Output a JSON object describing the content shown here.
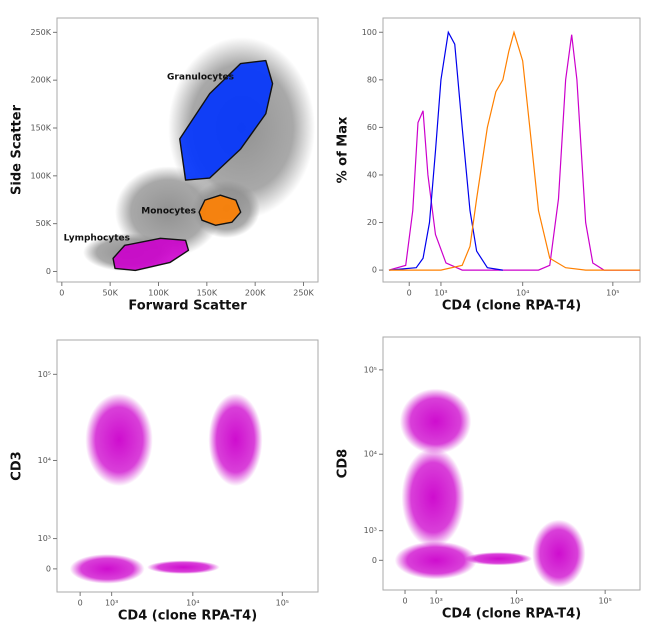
{
  "chart_data": [
    {
      "type": "scatter",
      "xlabel": "Forward Scatter",
      "ylabel": "Side Scatter",
      "xlim": [
        -5000,
        265000
      ],
      "ylim": [
        -11000,
        265000
      ],
      "xticks": [
        0,
        {
          "value": 50000,
          "label": "50K"
        },
        {
          "value": 100000,
          "label": "100K"
        },
        {
          "value": 150000,
          "label": "150K"
        },
        {
          "value": 200000,
          "label": "200K"
        },
        {
          "value": 250000,
          "label": "250K"
        }
      ],
      "yticks": [
        0,
        {
          "value": 50000,
          "label": "50K"
        },
        {
          "value": 100000,
          "label": "100K"
        },
        {
          "value": 150000,
          "label": "150K"
        },
        {
          "value": 200000,
          "label": "200K"
        },
        {
          "value": 250000,
          "label": "250K"
        }
      ],
      "color": "#8c8c8c",
      "populations": [
        {
          "x": [
            22000,
            115000
          ],
          "y": [
            0,
            40000
          ]
        },
        {
          "x": [
            55000,
            165000
          ],
          "y": [
            15000,
            110000
          ]
        },
        {
          "x": [
            110000,
            262000
          ],
          "y": [
            55000,
            245000
          ]
        },
        {
          "x": [
            135000,
            205000
          ],
          "y": [
            35000,
            95000
          ]
        }
      ],
      "gates": [
        {
          "name": "Granulocytes",
          "color": "#0033ff",
          "x": [
            122000,
            153000,
            185000,
            211000,
            218000,
            211000,
            185000,
            153000,
            128000
          ],
          "y": [
            138600,
            185900,
            217400,
            220500,
            196400,
            164900,
            128100,
            97700,
            95600
          ]
        },
        {
          "name": "Monocytes",
          "color": "#ff8000",
          "x": [
            142000,
            148000,
            164000,
            180000,
            185000,
            176000,
            159000,
            145000
          ],
          "y": [
            62000,
            74600,
            79800,
            74600,
            62000,
            51500,
            48300,
            53600
          ]
        },
        {
          "name": "Lymphocytes",
          "color": "#cc00cc",
          "x": [
            53000,
            65000,
            102000,
            128000,
            131000,
            112000,
            76000,
            55000
          ],
          "y": [
            13700,
            27300,
            34700,
            32600,
            22100,
            9500,
            1100,
            3200
          ]
        }
      ]
    },
    {
      "type": "line",
      "xlabel": "CD4 (clone RPA-T4)",
      "ylabel": "% of Max",
      "xscale": "biexponential",
      "xlim": [
        -800,
        200000
      ],
      "ylim": [
        -5,
        106
      ],
      "xticks": [
        0,
        {
          "value": 1000,
          "label": "10³"
        },
        {
          "value": 10000,
          "label": "10⁴"
        },
        {
          "value": 100000,
          "label": "10⁵"
        }
      ],
      "yticks": [
        0,
        20,
        40,
        60,
        80,
        100
      ],
      "series": [
        {
          "color": "#cc00cc",
          "x": [
            -600,
            -100,
            100,
            250,
            400,
            550,
            800,
            1200,
            2000,
            5000,
            10000,
            15000,
            20000,
            25000,
            30000,
            35000,
            40000,
            50000,
            60000,
            80000,
            200000
          ],
          "values": [
            0,
            2,
            25,
            62,
            67,
            40,
            15,
            3,
            0,
            0,
            0,
            0,
            2,
            30,
            80,
            99,
            80,
            20,
            3,
            0,
            0
          ]
        },
        {
          "color": "#0000ee",
          "x": [
            -600,
            200,
            400,
            600,
            800,
            1000,
            1300,
            1600,
            2000,
            2500,
            3000,
            4000,
            6000
          ],
          "values": [
            0,
            1,
            5,
            20,
            50,
            80,
            100,
            95,
            60,
            25,
            8,
            1,
            0
          ]
        },
        {
          "color": "#ff8000",
          "x": [
            -600,
            1000,
            2000,
            2500,
            3000,
            4000,
            5000,
            6000,
            7000,
            8000,
            10000,
            12000,
            15000,
            20000,
            30000,
            50000,
            200000
          ],
          "values": [
            0,
            0,
            2,
            10,
            30,
            60,
            75,
            80,
            92,
            100,
            88,
            60,
            25,
            5,
            1,
            0,
            0
          ]
        }
      ]
    },
    {
      "type": "scatter",
      "xlabel": "CD4 (clone RPA-T4)",
      "ylabel": "CD3",
      "xscale": "biexponential",
      "yscale": "biexponential",
      "xlim": [
        -700,
        250000
      ],
      "ylim": [
        -730,
        250000
      ],
      "xticks": [
        0,
        {
          "value": 1000,
          "label": "10³"
        },
        {
          "value": 10000,
          "label": "10⁴"
        },
        {
          "value": 100000,
          "label": "10⁵"
        }
      ],
      "yticks": [
        0,
        {
          "value": 1000,
          "label": "10³"
        },
        {
          "value": 10000,
          "label": "10⁴"
        },
        {
          "value": 100000,
          "label": "10⁵"
        }
      ],
      "color": "#cc00cc",
      "populations": [
        {
          "x": [
            150,
            3500
          ],
          "y": [
            5000,
            60000
          ]
        },
        {
          "x": [
            15000,
            60000
          ],
          "y": [
            5000,
            60000
          ]
        },
        {
          "x": [
            -300,
            2800
          ],
          "y": [
            -450,
            450
          ]
        },
        {
          "x": [
            3000,
            20000
          ],
          "y": [
            -150,
            250
          ]
        }
      ]
    },
    {
      "type": "scatter",
      "xlabel": "CD4 (clone RPA-T4)",
      "ylabel": "CD8",
      "xscale": "biexponential",
      "yscale": "biexponential",
      "xlim": [
        -670,
        247000
      ],
      "ylim": [
        -1000,
        245000
      ],
      "xticks": [
        0,
        {
          "value": 1000,
          "label": "10³"
        },
        {
          "value": 10000,
          "label": "10⁴"
        },
        {
          "value": 100000,
          "label": "10⁵"
        }
      ],
      "yticks": [
        0,
        {
          "value": 1000,
          "label": "10³"
        },
        {
          "value": 10000,
          "label": "10⁴"
        },
        {
          "value": 100000,
          "label": "10⁵"
        }
      ],
      "color": "#cc00cc",
      "populations": [
        {
          "x": [
            -150,
            3000
          ],
          "y": [
            10000,
            60000
          ]
        },
        {
          "x": [
            -100,
            2500
          ],
          "y": [
            400,
            12000
          ]
        },
        {
          "x": [
            -300,
            3500
          ],
          "y": [
            -600,
            600
          ]
        },
        {
          "x": [
            15000,
            60000
          ],
          "y": [
            -900,
            1500
          ]
        },
        {
          "x": [
            2500,
            15000
          ],
          "y": [
            -150,
            250
          ]
        }
      ]
    }
  ]
}
